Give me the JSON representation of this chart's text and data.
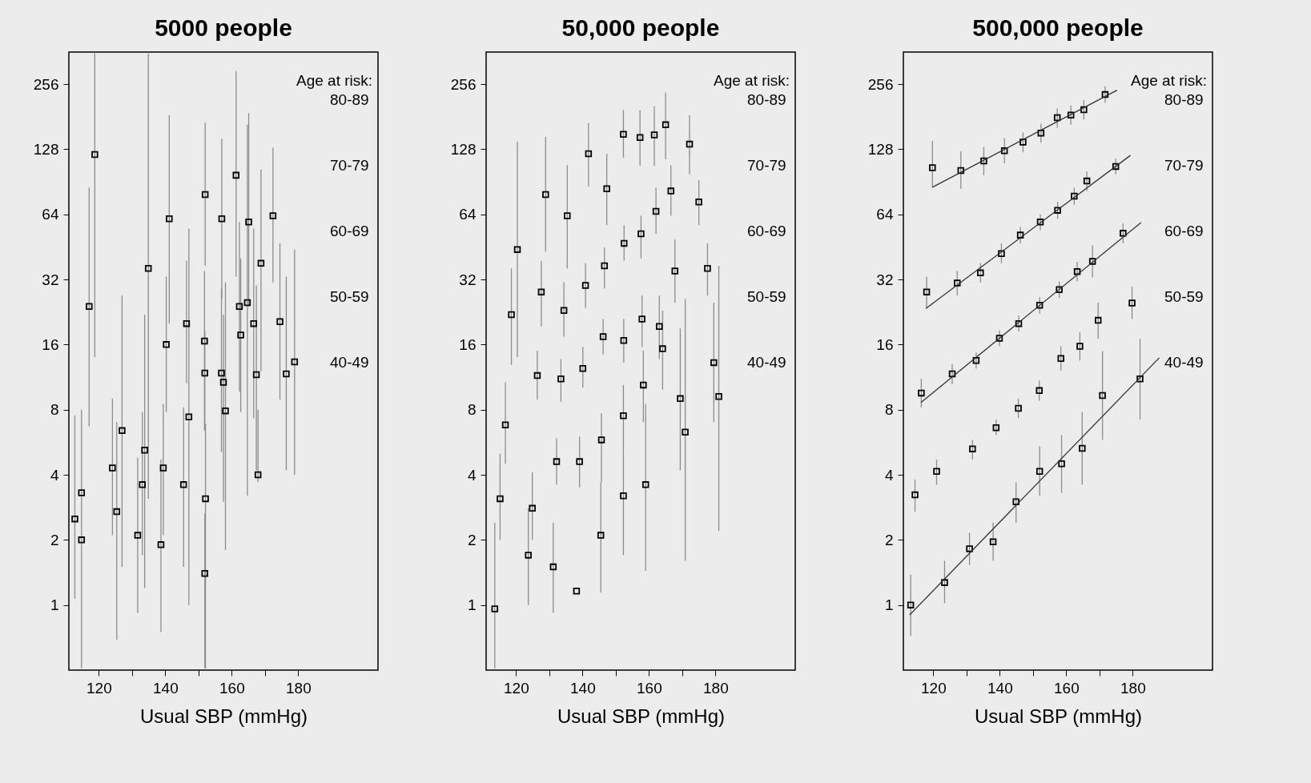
{
  "chart_data": [
    {
      "type": "scatter",
      "title": "5000 people",
      "xlabel": "Usual SBP (mmHg)",
      "xlim": [
        111,
        204
      ],
      "ylim": [
        0.5,
        360
      ],
      "log": "y",
      "grid": false,
      "marker": "square",
      "xticks": [
        120,
        {
          "value": 130,
          "label": null
        },
        140,
        {
          "value": 150,
          "label": null
        },
        160,
        {
          "value": 170,
          "label": null
        },
        180
      ],
      "yticks": [
        1,
        2,
        4,
        8,
        16,
        32,
        64,
        128,
        256
      ],
      "annotations": [
        "Age at risk:",
        "80-89",
        "70-79",
        "60-69",
        "50-59",
        "40-49"
      ],
      "series": [
        {
          "color": "#000000",
          "x": [
            112.8,
            114.8,
            114.8,
            117.1,
            118.8,
            124.1,
            125.4,
            127,
            131.7,
            133.1,
            133.8,
            134.9,
            138.7,
            139.4,
            140.3,
            141.2,
            145.5,
            146.4,
            147.1,
            151.8,
            151.9,
            152,
            152.1,
            151.9,
            156.9,
            157,
            157.5,
            158.1,
            161.3,
            162.3,
            162.7,
            164.7,
            165.1,
            166.6,
            167.4,
            167.9,
            168.8,
            172.4,
            174.5,
            176.4,
            178.9
          ],
          "values": [
            2.5,
            3.3,
            2,
            24,
            121,
            4.3,
            2.7,
            6.4,
            2.1,
            3.6,
            5.2,
            36,
            1.9,
            4.3,
            16,
            61,
            3.6,
            20,
            7.4,
            16.6,
            11.8,
            79,
            3.1,
            1.4,
            11.8,
            61,
            10.7,
            7.9,
            97,
            24,
            17.7,
            25,
            59,
            20,
            11.6,
            4,
            38,
            63,
            20.4,
            11.7,
            13.3
          ],
          "errors": [
            [
              1.07,
              7.5
            ],
            [
              0.51,
              8
            ],
            null,
            [
              6.7,
              85
            ],
            [
              14,
              355
            ],
            [
              2.1,
              9
            ],
            [
              0.69,
              7
            ],
            [
              1.5,
              27
            ],
            [
              0.92,
              4.8
            ],
            [
              1.7,
              7.8
            ],
            [
              1.2,
              22
            ],
            [
              3.1,
              355
            ],
            [
              0.75,
              4.7
            ],
            [
              2.1,
              8.5
            ],
            [
              7.8,
              33
            ],
            [
              20,
              184
            ],
            [
              1.5,
              8.2
            ],
            [
              10.6,
              39
            ],
            [
              1,
              55
            ],
            [
              6.4,
              35
            ],
            [
              6.7,
              18.6
            ],
            [
              37,
              170
            ],
            [
              0.51,
              6.9
            ],
            [
              0.51,
              2.65
            ],
            [
              5.1,
              29
            ],
            [
              26,
              143
            ],
            [
              3,
              22
            ],
            [
              1.8,
              31
            ],
            [
              33,
              294
            ],
            [
              9.7,
              59
            ],
            [
              7.8,
              40
            ],
            [
              3.2,
              166
            ],
            [
              24,
              188
            ],
            [
              7.3,
              55
            ],
            [
              4.2,
              30
            ],
            [
              3.7,
              8
            ],
            [
              12,
              103
            ],
            [
              31,
              130
            ],
            [
              8.9,
              47
            ],
            [
              4.2,
              33
            ],
            [
              4,
              44
            ]
          ]
        }
      ]
    },
    {
      "type": "scatter",
      "title": "50,000 people",
      "xlabel": "Usual SBP (mmHg)",
      "xlim": [
        111,
        204
      ],
      "ylim": [
        0.5,
        360
      ],
      "log": "y",
      "grid": false,
      "marker": "square",
      "xticks": [
        120,
        {
          "value": 130,
          "label": null
        },
        140,
        {
          "value": 150,
          "label": null
        },
        160,
        {
          "value": 170,
          "label": null
        },
        180
      ],
      "yticks": [
        1,
        2,
        4,
        8,
        16,
        32,
        64,
        128,
        256
      ],
      "annotations": [
        "Age at risk:",
        "80-89",
        "70-79",
        "60-69",
        "50-59",
        "40-49"
      ],
      "series": [
        {
          "color": "#000000",
          "x": [
            113.6,
            115.2,
            116.8,
            118.6,
            120.4,
            123.7,
            124.9,
            126.4,
            127.6,
            128.9,
            131.2,
            132.2,
            133.5,
            134.4,
            135.4,
            138.2,
            139.1,
            140.1,
            140.9,
            141.8,
            145.5,
            145.7,
            146.2,
            146.6,
            147.3,
            152.3,
            152.3,
            152.4,
            152.5,
            152.3,
            157.3,
            157.6,
            157.9,
            158.3,
            159,
            161.6,
            162.1,
            163.1,
            164.1,
            165,
            166.6,
            167.8,
            169.4,
            170.9,
            172.2,
            175,
            177.6,
            179.5,
            181
          ],
          "values": [
            0.96,
            3.1,
            6.8,
            22,
            44,
            1.7,
            2.8,
            11.5,
            28,
            79,
            1.5,
            4.6,
            11.1,
            23,
            63,
            1.16,
            4.6,
            12.4,
            30,
            122,
            2.1,
            5.8,
            17.4,
            37,
            84,
            3.2,
            7.5,
            16.7,
            47,
            150,
            145,
            52,
            21,
            10.4,
            3.6,
            149,
            66,
            19.4,
            15.3,
            166,
            82,
            35,
            9,
            6.3,
            135,
            73,
            36,
            13.2,
            9.2
          ],
          "errors": [
            [
              0.51,
              2.4
            ],
            [
              2,
              5
            ],
            [
              4.5,
              10.7
            ],
            [
              12.9,
              36
            ],
            [
              14,
              139
            ],
            [
              1,
              2.8
            ],
            [
              2,
              4.1
            ],
            [
              8.9,
              15
            ],
            [
              19.4,
              39
            ],
            [
              43,
              146
            ],
            [
              0.92,
              2.4
            ],
            [
              3.6,
              5.9
            ],
            [
              8.7,
              13.7
            ],
            [
              17.4,
              31
            ],
            [
              36,
              108
            ],
            null,
            [
              3.5,
              6
            ],
            [
              10.1,
              15.6
            ],
            [
              23.6,
              38
            ],
            [
              86,
              169
            ],
            [
              1.14,
              3.7
            ],
            [
              3.7,
              7.7
            ],
            [
              14.4,
              21
            ],
            [
              29,
              45
            ],
            [
              57,
              122
            ],
            [
              1.7,
              5.1
            ],
            [
              5.1,
              10.4
            ],
            [
              13.2,
              21
            ],
            [
              39,
              57
            ],
            [
              117,
              194
            ],
            [
              107,
              194
            ],
            [
              40,
              63
            ],
            [
              15.6,
              27
            ],
            [
              7,
              15
            ],
            [
              1.44,
              8.5
            ],
            [
              107,
              202
            ],
            [
              52,
              85
            ],
            [
              13.7,
              27
            ],
            [
              9.9,
              23
            ],
            [
              115,
              234
            ],
            [
              63,
              108
            ],
            [
              25,
              49
            ],
            [
              4.2,
              19
            ],
            [
              1.6,
              26
            ],
            [
              98,
              184
            ],
            [
              57,
              92
            ],
            [
              27,
              47
            ],
            [
              7,
              25
            ],
            [
              2.2,
              37
            ]
          ]
        }
      ]
    },
    {
      "type": "scatter",
      "title": "500,000 people",
      "xlabel": "Usual SBP (mmHg)",
      "xlim": [
        111,
        204
      ],
      "ylim": [
        0.5,
        360
      ],
      "log": "y",
      "grid": false,
      "marker": "square",
      "xticks": [
        120,
        {
          "value": 130,
          "label": null
        },
        140,
        {
          "value": 150,
          "label": null
        },
        160,
        {
          "value": 170,
          "label": null
        },
        180
      ],
      "yticks": [
        1,
        2,
        4,
        8,
        16,
        32,
        64,
        128,
        256
      ],
      "annotations": [
        "Age at risk:",
        "80-89",
        "70-79",
        "60-69",
        "50-59",
        "40-49"
      ],
      "series": [
        {
          "color": "#000000",
          "x": [
            119.75,
            128.3,
            135.2,
            141.4,
            147,
            152.4,
            157.3,
            161.4,
            165.3,
            171.7,
            118,
            127.2,
            134.2,
            140.5,
            146.2,
            152.2,
            157.4,
            162.4,
            166.2,
            174.9,
            116.4,
            125.7,
            132.9,
            139.9,
            145.7,
            152,
            157.9,
            163.3,
            167.9,
            177.1,
            114.5,
            121,
            131.8,
            138.9,
            145.6,
            151.9,
            158.4,
            164.1,
            169.6,
            179.8,
            113.2,
            123.4,
            130.9,
            138,
            144.9,
            152,
            158.6,
            164.8,
            170.9,
            182.2
          ],
          "values": [
            105,
            102,
            113,
            126,
            138,
            152,
            179,
            184,
            195,
            229,
            28,
            30.8,
            34.3,
            42.1,
            51.3,
            59,
            66.8,
            77.6,
            91.2,
            106.5,
            9.55,
            11.7,
            13.5,
            17.1,
            20,
            24.3,
            28.7,
            34.8,
            38.8,
            52.3,
            3.23,
            4.15,
            5.27,
            6.6,
            8.12,
            9.8,
            13.8,
            15.7,
            20.7,
            24.9,
            1,
            1.27,
            1.82,
            1.96,
            3,
            4.15,
            4.5,
            5.3,
            9.3,
            11.1
          ],
          "errors": [
            [
              85,
              140
            ],
            [
              84,
              125
            ],
            [
              97,
              131
            ],
            [
              110,
              144
            ],
            [
              124,
              153
            ],
            [
              137,
              168
            ],
            [
              161,
              198
            ],
            [
              166,
              204
            ],
            [
              176,
              216
            ],
            [
              210,
              250
            ],
            [
              23.5,
              33
            ],
            [
              27,
              35
            ],
            [
              31,
              38
            ],
            [
              38,
              47
            ],
            [
              47,
              56
            ],
            [
              54,
              64
            ],
            [
              61,
              73
            ],
            [
              71,
              85
            ],
            [
              82,
              101
            ],
            [
              98,
              116
            ],
            [
              8.2,
              11.1
            ],
            [
              10.5,
              13
            ],
            [
              12.4,
              14.7
            ],
            [
              15.7,
              18.6
            ],
            [
              18.4,
              21.8
            ],
            [
              22.3,
              26.5
            ],
            [
              26.3,
              31.3
            ],
            [
              31.4,
              38.6
            ],
            [
              32.6,
              46
            ],
            [
              47,
              58
            ],
            [
              2.7,
              3.8
            ],
            [
              3.6,
              4.7
            ],
            [
              4.7,
              5.8
            ],
            [
              6.1,
              7.2
            ],
            [
              7.3,
              9
            ],
            [
              8.8,
              10.9
            ],
            [
              12.1,
              15.7
            ],
            [
              13.5,
              18.2
            ],
            [
              17,
              25
            ],
            [
              21,
              29.6
            ],
            [
              0.72,
              1.38
            ],
            [
              1.02,
              1.6
            ],
            [
              1.53,
              2.16
            ],
            [
              1.6,
              2.4
            ],
            [
              2.4,
              3.7
            ],
            [
              3.2,
              5.4
            ],
            [
              3.3,
              6.1
            ],
            [
              3.6,
              7.8
            ],
            [
              5.8,
              14.9
            ],
            [
              7.2,
              17
            ]
          ]
        },
        {
          "type": "line",
          "marker": "none",
          "color": "#333333",
          "x": [
            119.75,
            175.3
          ],
          "values": [
            85.4,
            240
          ]
        },
        {
          "type": "line",
          "marker": "none",
          "color": "#333333",
          "x": [
            117.8,
            179.3
          ],
          "values": [
            23.5,
            119.8
          ]
        },
        {
          "type": "line",
          "marker": "none",
          "color": "#333333",
          "x": [
            116.3,
            182.5
          ],
          "values": [
            8.64,
            58.6
          ]
        },
        {
          "type": "line",
          "marker": "none",
          "color": "#333333",
          "x": [
            112.9,
            188
          ],
          "values": [
            0.9,
            13.9
          ]
        }
      ]
    }
  ]
}
